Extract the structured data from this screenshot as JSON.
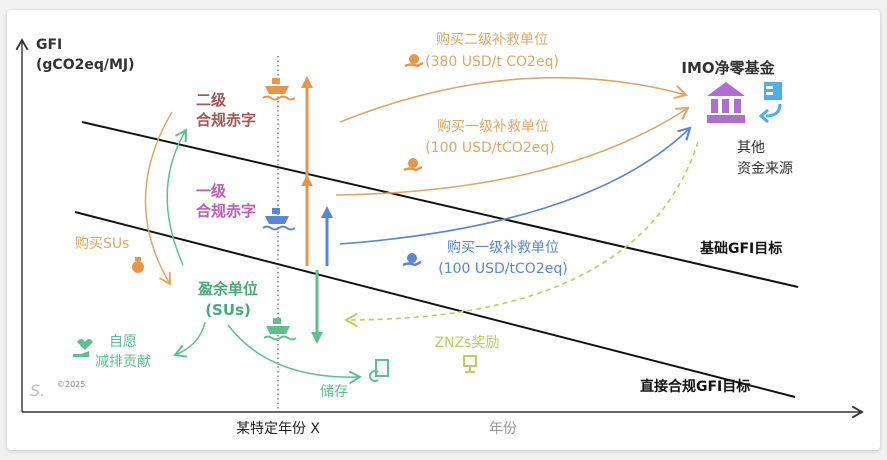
{
  "axes": {
    "y_label_line1": "GFI",
    "y_label_line2": "(gCO2eq/MJ)",
    "x_marker_label": "某特定年份 X",
    "x_label": "年份"
  },
  "deficits": {
    "tier2_line1": "二级",
    "tier2_line2": "合规赤字",
    "tier1_line1": "一级",
    "tier1_line2": "合规赤字"
  },
  "targets": {
    "base": "基础GFI目标",
    "direct": "直接合规GFI目标"
  },
  "flows": {
    "buy_tier2_line1": "购买二级补救单位",
    "buy_tier2_line2": "(380 USD/t CO2eq)",
    "buy_tier1_orange_line1": "购买一级补救单位",
    "buy_tier1_orange_line2": "(100 USD/tCO2eq)",
    "buy_tier1_blue_line1": "购买一级补救单位",
    "buy_tier1_blue_line2": "(100 USD/tCO2eq)",
    "buy_sus": "购买SUs",
    "znz_reward": "ZNZs奖励"
  },
  "fund": {
    "title": "IMO净零基金",
    "other_line1": "其他",
    "other_line2": "资金来源"
  },
  "surplus": {
    "line1": "盈余单位",
    "line2": "(SUs)",
    "voluntary_line1": "自愿",
    "voluntary_line2": "减排贡献",
    "storage": "储存"
  },
  "watermark": "©2025",
  "colors": {
    "orange": "#e8954a",
    "orange_text": "#e2a766",
    "blue": "#5b86d6",
    "green": "#5fc08f",
    "purple": "#b06fd0",
    "tier2_text": "#a65650",
    "tier1_text": "#c25cb4",
    "znz": "#b8d060"
  }
}
